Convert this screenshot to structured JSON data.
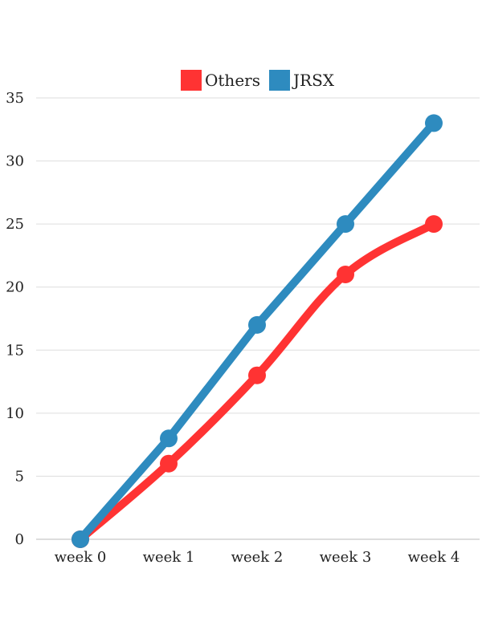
{
  "chart_data": {
    "type": "line",
    "title": "",
    "xlabel": "",
    "ylabel": "",
    "categories": [
      "week 0",
      "week 1",
      "week 2",
      "week 3",
      "week 4"
    ],
    "ylim": [
      0,
      35
    ],
    "yticks": [
      0,
      5,
      10,
      15,
      20,
      25,
      30,
      35
    ],
    "grid": true,
    "legend_position": "top-center",
    "series": [
      {
        "name": "Others",
        "color": "#ff3333",
        "values": [
          0,
          6,
          13,
          21,
          25
        ]
      },
      {
        "name": "JRSX",
        "color": "#2e8bbf",
        "values": [
          0,
          8,
          17,
          25,
          33
        ]
      }
    ]
  }
}
